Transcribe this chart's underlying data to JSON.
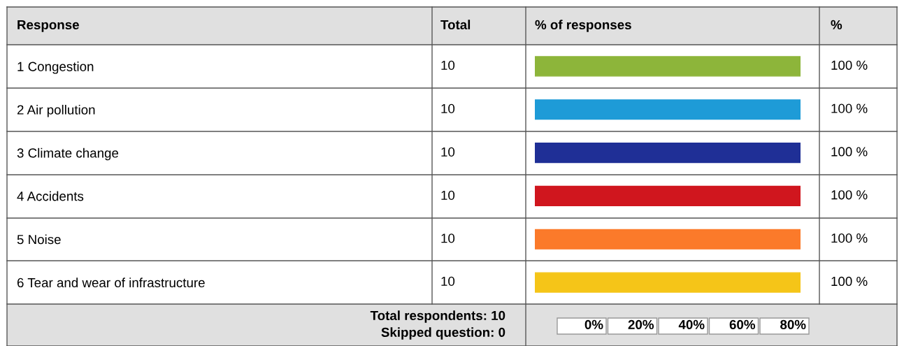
{
  "chart_data": {
    "type": "bar",
    "orientation": "horizontal",
    "categories": [
      "1 Congestion",
      "2 Air pollution",
      "3 Climate change",
      "4 Accidents",
      "5 Noise",
      "6 Tear and wear of infrastructure"
    ],
    "values": [
      100,
      100,
      100,
      100,
      100,
      100
    ],
    "colors": [
      "#8db53a",
      "#1e9bd7",
      "#1f2f96",
      "#d0161e",
      "#fb7a2a",
      "#f5c518"
    ],
    "value_labels": [
      "100 %",
      "100 %",
      "100 %",
      "100 %",
      "100 %",
      "100 %"
    ],
    "annotations": [
      "Response",
      "Total",
      "% of responses",
      "%",
      "10",
      "10",
      "10",
      "10",
      "10",
      "10",
      "Total respondents: 10",
      "Skipped question: 0",
      "0%",
      "20%",
      "40%",
      "60%",
      "80%"
    ]
  }
}
